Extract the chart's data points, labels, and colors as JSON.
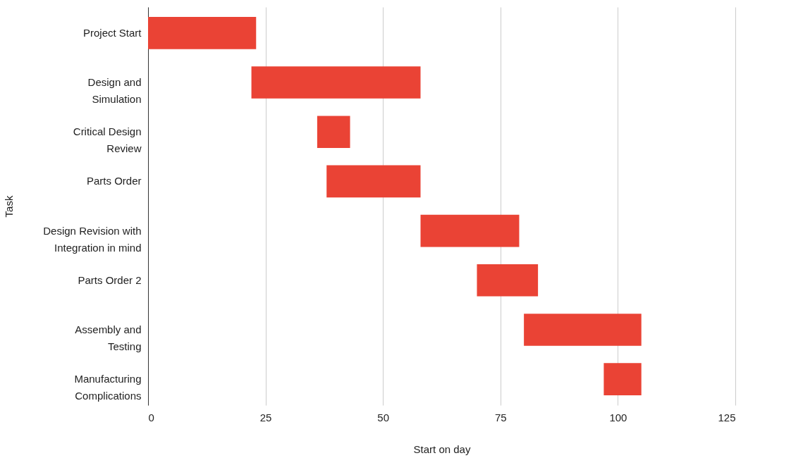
{
  "chart_data": {
    "type": "bar",
    "orientation": "horizontal",
    "categories": [
      "Project Start",
      "Design and Simulation",
      "Critical Design Review",
      "Parts Order",
      "Design Revision with Integration in mind",
      "Parts Order 2",
      "Assembly and Testing",
      "Manufacturing Complications"
    ],
    "base": [
      0,
      22,
      36,
      38,
      58,
      70,
      80,
      97
    ],
    "values": [
      23,
      36,
      7,
      20,
      21,
      13,
      25,
      8
    ],
    "color": "#ea4335",
    "xlabel": "Start on day",
    "ylabel": "Task",
    "xlim": [
      0,
      125
    ],
    "xticks": [
      0,
      25,
      50,
      75,
      100,
      125
    ],
    "grid": "x"
  }
}
